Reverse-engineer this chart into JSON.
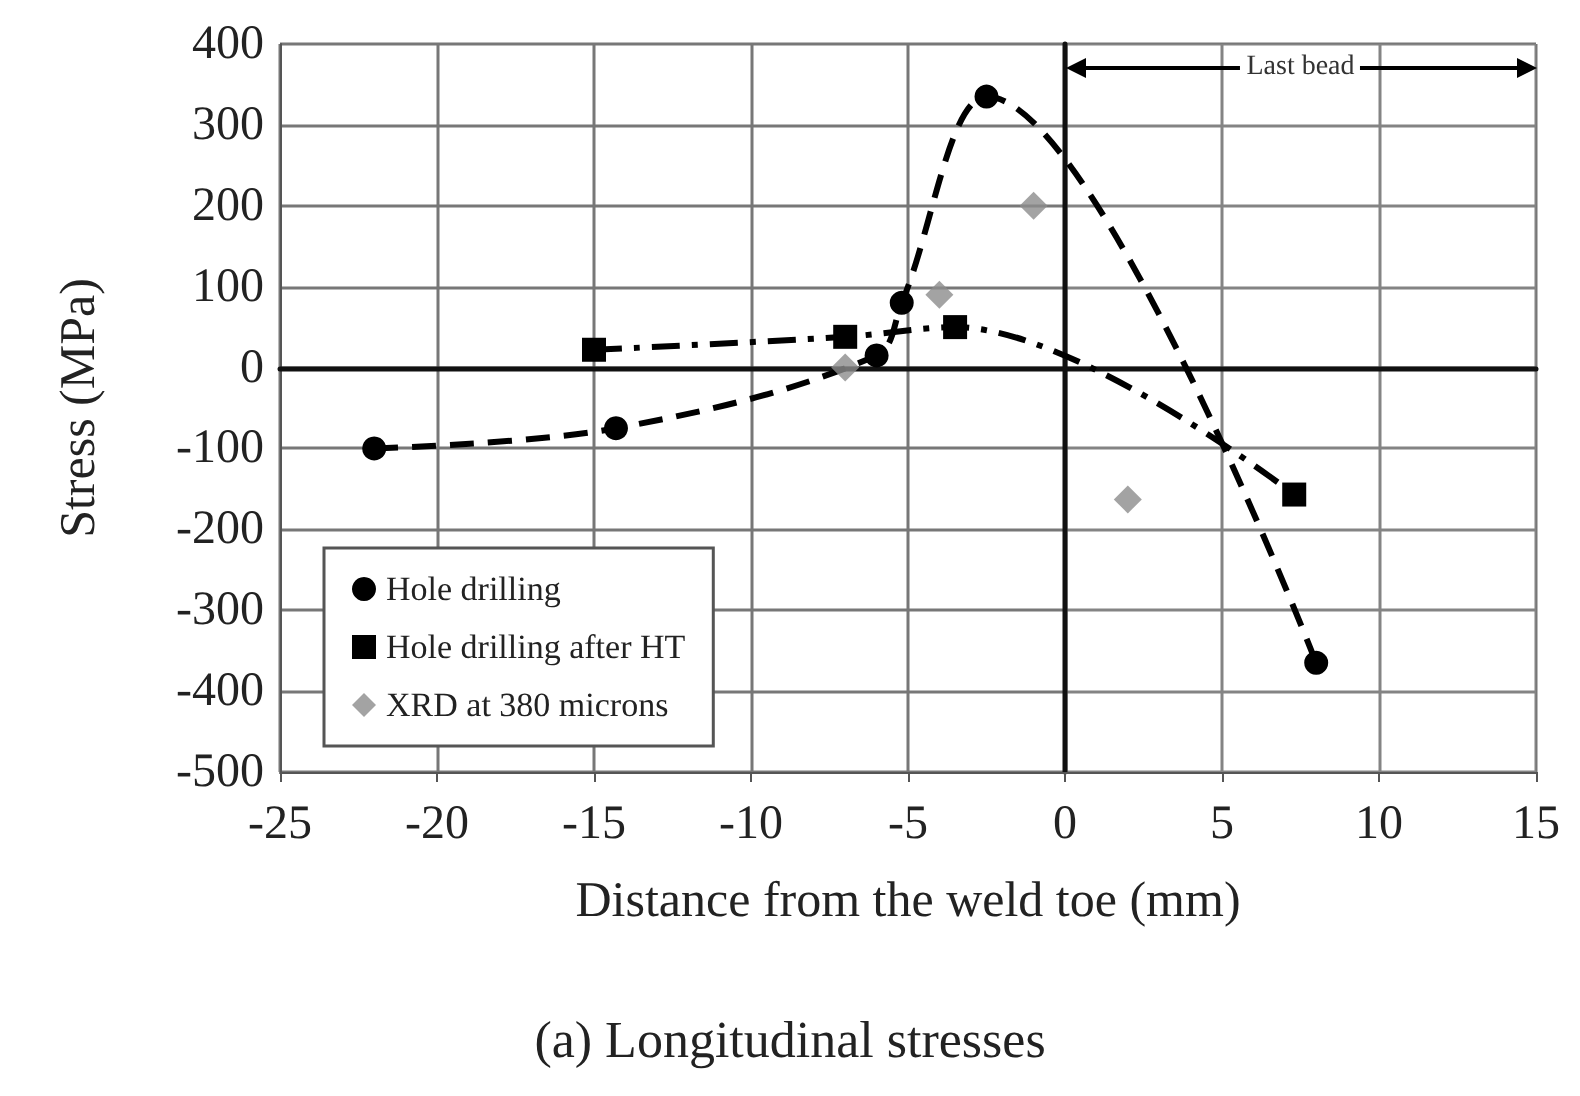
{
  "chart_data": {
    "type": "line",
    "title": "(a) Longitudinal stresses",
    "xlabel": "Distance from the weld toe (mm)",
    "ylabel": "Stress (MPa)",
    "xlim": [
      -25,
      15
    ],
    "xticks": [
      -25,
      -20,
      -15,
      -10,
      -5,
      0,
      5,
      10,
      15
    ],
    "ylim": [
      -500,
      400
    ],
    "yticks": [
      -500,
      -400,
      -300,
      -200,
      -100,
      0,
      100,
      200,
      300,
      400
    ],
    "grid": true,
    "legend": "bottom left",
    "series": [
      {
        "name": "Hole drilling",
        "color": "#000000",
        "marker": "circle",
        "line_style": "dashed",
        "x": [
          -22,
          -14.3,
          -6,
          -5.2,
          -2.5,
          8
        ],
        "values": [
          -100,
          -75,
          15,
          80,
          335,
          -365
        ]
      },
      {
        "name": "Hole drilling after HT",
        "color": "#000000",
        "marker": "square",
        "line_style": "dashdot",
        "x": [
          -15,
          -7,
          -3.5,
          7.3
        ],
        "values": [
          22,
          38,
          50,
          -157
        ]
      },
      {
        "name": "XRD at 380 microns",
        "type": "scatter",
        "color": "#8c8c8c",
        "marker": "diamond",
        "x": [
          -7,
          -4,
          -1,
          2
        ],
        "values": [
          0,
          90,
          200,
          -163
        ]
      }
    ],
    "bands": [
      {
        "axis": "x",
        "from": 0,
        "to": 15,
        "label": "Last bead",
        "color": "#ffffff"
      }
    ]
  }
}
